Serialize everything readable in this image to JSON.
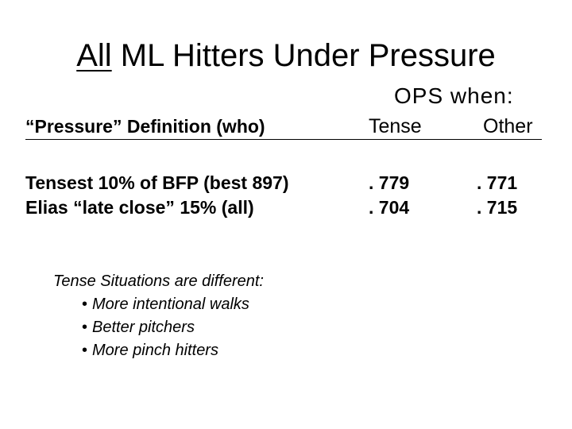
{
  "title": {
    "underlined": "All",
    "rest": " ML Hitters Under Pressure"
  },
  "ops_when": "OPS when:",
  "table": {
    "headers": {
      "definition": "“Pressure” Definition (who)",
      "tense": "Tense",
      "other": "Other"
    },
    "rows": [
      {
        "definition": "Tensest 10% of BFP (best 897)",
        "tense": ". 779",
        "other": ". 771"
      },
      {
        "definition": "Elias “late close” 15% (all)",
        "tense": ". 704",
        "other": ". 715"
      }
    ]
  },
  "notes": {
    "heading": "Tense Situations are different:",
    "items": [
      "More intentional walks",
      "Better pitchers",
      "More pinch hitters"
    ]
  }
}
